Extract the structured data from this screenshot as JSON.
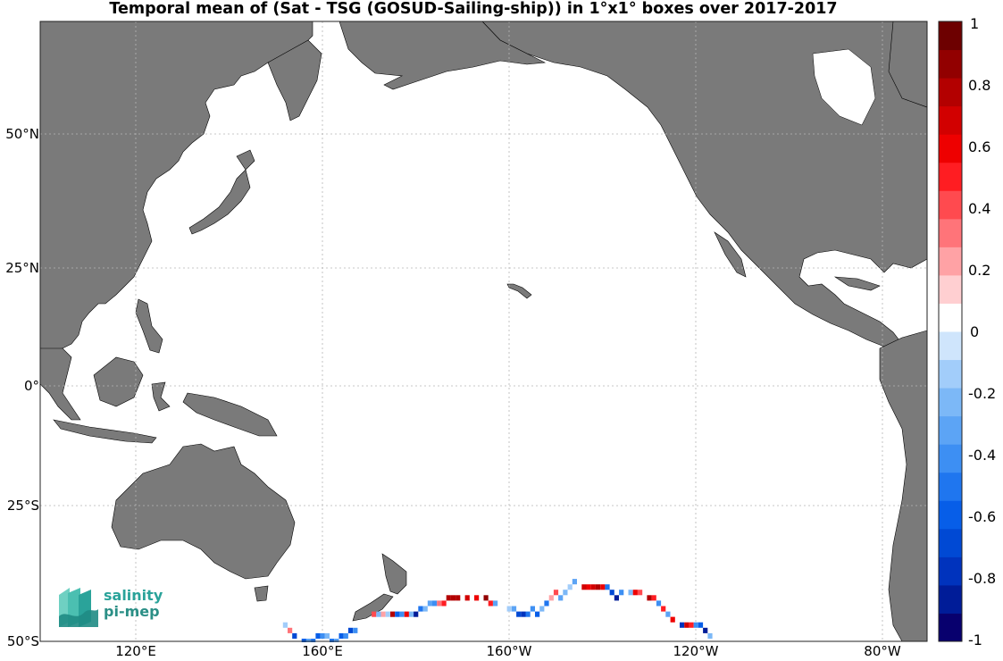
{
  "title": "Temporal mean of (Sat - TSG (GOSUD-Sailing-ship)) in 1°x1° boxes over 2017-2017",
  "axes": {
    "lat_ticks": [
      "50°N",
      "25°N",
      "0°",
      "25°S",
      "50°S"
    ],
    "lon_ticks": [
      "120°E",
      "160°E",
      "160°W",
      "120°W",
      "80°W"
    ]
  },
  "colorbar": {
    "labels": [
      "1",
      "0.8",
      "0.6",
      "0.4",
      "0.2",
      "0",
      "-0.2",
      "-0.4",
      "-0.6",
      "-0.8",
      "-1"
    ],
    "range": [
      -1,
      1
    ],
    "colors": [
      "#08006e",
      "#001c98",
      "#0033bd",
      "#0049d4",
      "#075ee8",
      "#1f76ef",
      "#3d8ff3",
      "#5ca4f5",
      "#7cb8f7",
      "#a2cdfa",
      "#cfe5fc",
      "#ffffff",
      "#ffcfd1",
      "#ffa2a5",
      "#ff7479",
      "#ff4a4f",
      "#ff1d22",
      "#ee0000",
      "#d20000",
      "#b30000",
      "#920000",
      "#6d0000"
    ]
  },
  "map": {
    "land_color": "#7a7a7a",
    "ocean_color": "#ffffff",
    "grid": true,
    "lon_range": [
      100,
      290
    ],
    "lat_range": [
      -50,
      70
    ]
  },
  "chart_data": {
    "type": "heatmap",
    "title": "Temporal mean of (Sat - TSG (GOSUD-Sailing-ship)) in 1°x1° boxes over 2017-2017",
    "cell_size_deg": 1,
    "colormap_range": [
      -1,
      1
    ],
    "cells": [
      {
        "lon": 152,
        "lat": -47,
        "v": -0.1
      },
      {
        "lon": 153,
        "lat": -48,
        "v": 0.3
      },
      {
        "lon": 154,
        "lat": -49,
        "v": -0.7
      },
      {
        "lon": 156,
        "lat": -50,
        "v": -0.6
      },
      {
        "lon": 157,
        "lat": -50,
        "v": -0.3
      },
      {
        "lon": 158,
        "lat": -50,
        "v": -0.5
      },
      {
        "lon": 159,
        "lat": -49,
        "v": -0.6
      },
      {
        "lon": 160,
        "lat": -49,
        "v": -0.4
      },
      {
        "lon": 161,
        "lat": -49,
        "v": -0.2
      },
      {
        "lon": 162,
        "lat": -50,
        "v": -0.5
      },
      {
        "lon": 163,
        "lat": -50,
        "v": -0.3
      },
      {
        "lon": 164,
        "lat": -49,
        "v": -0.6
      },
      {
        "lon": 165,
        "lat": -49,
        "v": -0.4
      },
      {
        "lon": 166,
        "lat": -48,
        "v": -0.7
      },
      {
        "lon": 167,
        "lat": -48,
        "v": -0.4
      },
      {
        "lon": 171,
        "lat": -45,
        "v": 0.4
      },
      {
        "lon": 172,
        "lat": -45,
        "v": -0.2
      },
      {
        "lon": 173,
        "lat": -45,
        "v": 0.2
      },
      {
        "lon": 174,
        "lat": -45,
        "v": -0.1
      },
      {
        "lon": 175,
        "lat": -45,
        "v": 0.8
      },
      {
        "lon": 176,
        "lat": -45,
        "v": -0.6
      },
      {
        "lon": 177,
        "lat": -45,
        "v": -0.4
      },
      {
        "lon": 178,
        "lat": -45,
        "v": 0.6
      },
      {
        "lon": 179,
        "lat": -45,
        "v": -0.2
      },
      {
        "lon": 180,
        "lat": -45,
        "v": -0.9
      },
      {
        "lon": 181,
        "lat": -44,
        "v": -0.5
      },
      {
        "lon": 182,
        "lat": -44,
        "v": -0.2
      },
      {
        "lon": 183,
        "lat": -43,
        "v": -0.3
      },
      {
        "lon": 184,
        "lat": -43,
        "v": -0.4
      },
      {
        "lon": 185,
        "lat": -43,
        "v": 0.3
      },
      {
        "lon": 186,
        "lat": -43,
        "v": 0.5
      },
      {
        "lon": 187,
        "lat": -42,
        "v": 0.8
      },
      {
        "lon": 188,
        "lat": -42,
        "v": 0.8
      },
      {
        "lon": 189,
        "lat": -42,
        "v": 0.8
      },
      {
        "lon": 191,
        "lat": -42,
        "v": 0.7
      },
      {
        "lon": 193,
        "lat": -42,
        "v": 0.6
      },
      {
        "lon": 195,
        "lat": -42,
        "v": 0.9
      },
      {
        "lon": 196,
        "lat": -43,
        "v": 0.5
      },
      {
        "lon": 197,
        "lat": -43,
        "v": -0.3
      },
      {
        "lon": 200,
        "lat": -44,
        "v": -0.1
      },
      {
        "lon": 201,
        "lat": -44,
        "v": -0.3
      },
      {
        "lon": 202,
        "lat": -45,
        "v": -0.7
      },
      {
        "lon": 203,
        "lat": -45,
        "v": -0.8
      },
      {
        "lon": 204,
        "lat": -45,
        "v": -0.5
      },
      {
        "lon": 205,
        "lat": -44,
        "v": -0.4
      },
      {
        "lon": 206,
        "lat": -45,
        "v": -0.6
      },
      {
        "lon": 207,
        "lat": -44,
        "v": -0.2
      },
      {
        "lon": 208,
        "lat": -43,
        "v": -0.5
      },
      {
        "lon": 209,
        "lat": -42,
        "v": 0.2
      },
      {
        "lon": 210,
        "lat": -41,
        "v": 0.4
      },
      {
        "lon": 211,
        "lat": -42,
        "v": -0.3
      },
      {
        "lon": 212,
        "lat": -41,
        "v": -0.2
      },
      {
        "lon": 213,
        "lat": -40,
        "v": -0.1
      },
      {
        "lon": 214,
        "lat": -39,
        "v": -0.3
      },
      {
        "lon": 216,
        "lat": -40,
        "v": 0.7
      },
      {
        "lon": 217,
        "lat": -40,
        "v": 0.6
      },
      {
        "lon": 218,
        "lat": -40,
        "v": 0.7
      },
      {
        "lon": 219,
        "lat": -40,
        "v": 0.8
      },
      {
        "lon": 220,
        "lat": -40,
        "v": 0.6
      },
      {
        "lon": 221,
        "lat": -40,
        "v": -0.5
      },
      {
        "lon": 222,
        "lat": -41,
        "v": -0.7
      },
      {
        "lon": 223,
        "lat": -42,
        "v": -0.9
      },
      {
        "lon": 224,
        "lat": -41,
        "v": -0.4
      },
      {
        "lon": 226,
        "lat": -41,
        "v": -0.2
      },
      {
        "lon": 227,
        "lat": -41,
        "v": 0.6
      },
      {
        "lon": 228,
        "lat": -41,
        "v": 0.4
      },
      {
        "lon": 230,
        "lat": -42,
        "v": 0.8
      },
      {
        "lon": 231,
        "lat": -42,
        "v": 0.5
      },
      {
        "lon": 232,
        "lat": -43,
        "v": -0.4
      },
      {
        "lon": 233,
        "lat": -44,
        "v": 0.5
      },
      {
        "lon": 234,
        "lat": -45,
        "v": -0.3
      },
      {
        "lon": 235,
        "lat": -46,
        "v": 0.6
      },
      {
        "lon": 237,
        "lat": -47,
        "v": -0.8
      },
      {
        "lon": 238,
        "lat": -47,
        "v": 0.7
      },
      {
        "lon": 239,
        "lat": -47,
        "v": 0.5
      },
      {
        "lon": 240,
        "lat": -47,
        "v": -0.4
      },
      {
        "lon": 241,
        "lat": -47,
        "v": -0.6
      },
      {
        "lon": 242,
        "lat": -48,
        "v": -0.9
      },
      {
        "lon": 243,
        "lat": -49,
        "v": -0.2
      }
    ]
  },
  "logo": {
    "line1": "salinity",
    "line2": "pi-mep"
  }
}
